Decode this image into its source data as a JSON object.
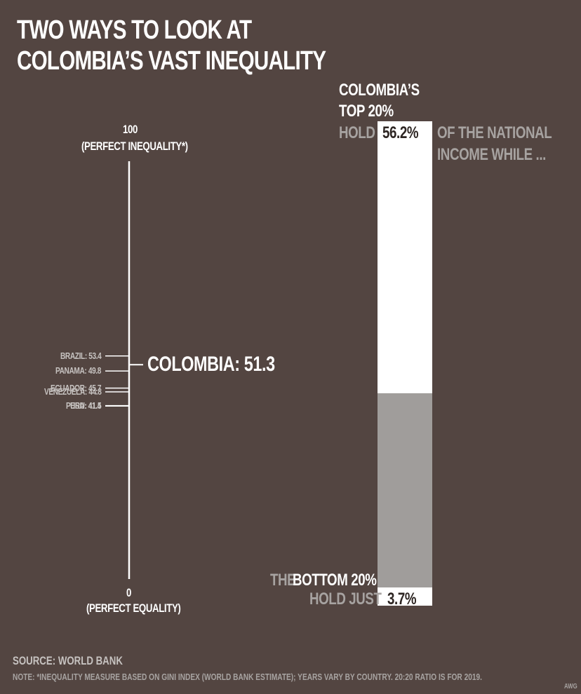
{
  "title": {
    "line1": "TWO WAYS TO LOOK AT",
    "line2": "COLOMBIA’S VAST INEQUALITY"
  },
  "colors": {
    "background": "#534541",
    "white": "#ffffff",
    "grey_text": "#a7a3a1",
    "bar_bottom_portion": "#a09d9b"
  },
  "chart_data": [
    {
      "type": "scatter",
      "title": "",
      "scale_top_value": "100",
      "scale_top_label": "(PERFECT INEQUALITY*)",
      "scale_bottom_value": "0",
      "scale_bottom_label": "(PERFECT EQUALITY)",
      "ylim": [
        0,
        100
      ],
      "highlight": {
        "country": "COLOMBIA",
        "value": 51.3,
        "label": "COLOMBIA: 51.3"
      },
      "points": [
        {
          "country": "BRAZIL",
          "value": 53.4,
          "label": "BRAZIL: 53.4"
        },
        {
          "country": "PANAMA",
          "value": 49.8,
          "label": "PANAMA: 49.8"
        },
        {
          "country": "ECUADOR",
          "value": 45.7,
          "label": "ECUADOR: 45.7"
        },
        {
          "country": "VENEZUELA",
          "value": 44.8,
          "label": "VENEZUELA: 44.8"
        },
        {
          "country": "PERU",
          "value": 41.5,
          "label": "PERU: 41.5"
        },
        {
          "country": "USA",
          "value": 41.4,
          "label": "USA: 41.4"
        }
      ]
    },
    {
      "type": "bar",
      "title": "",
      "top_share": 56.2,
      "bottom_share": 3.7,
      "top_value_label": "56.2%",
      "bottom_value_label": "3.7%",
      "top_heading_line1": "COLOMBIA’S",
      "top_heading_line2": "TOP 20%",
      "top_hold": "HOLD",
      "top_suffix_line1": "OF THE NATIONAL",
      "top_suffix_line2": "INCOME WHILE ...",
      "bottom_heading_the": "THE",
      "bottom_heading_rest": "BOTTOM 20%",
      "bottom_hold": "HOLD JUST"
    }
  ],
  "footer": {
    "source": "SOURCE: WORLD BANK",
    "note": "NOTE:  *INEQUALITY MEASURE BASED ON GINI INDEX (WORLD BANK ESTIMATE); YEARS VARY BY COUNTRY. 20:20 RATIO IS FOR 2019.",
    "credit": "AWG"
  }
}
